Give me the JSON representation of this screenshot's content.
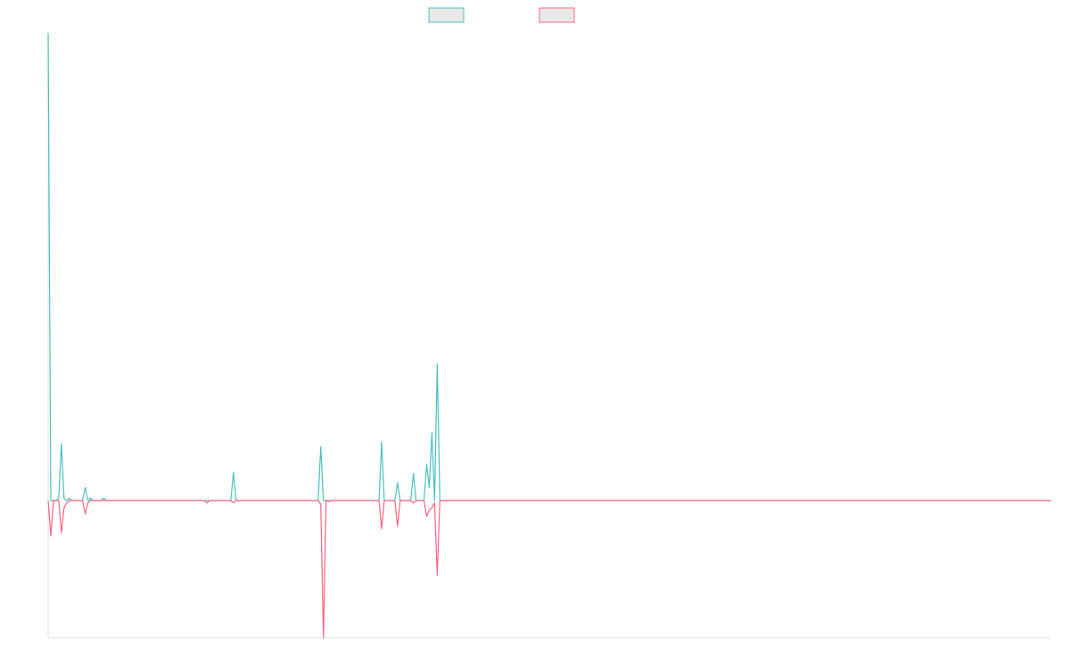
{
  "chart_data": {
    "type": "line",
    "title": "",
    "xlabel": "",
    "ylabel": "",
    "x_count": 380,
    "ylim": [
      -0.29,
      1.0
    ],
    "grid": false,
    "legend_position": "top-center",
    "series": [
      {
        "color": "#4bc0c0",
        "fill": "#e8e8e8",
        "name": "",
        "points": [
          [
            0,
            1.0
          ],
          [
            1,
            0.0
          ],
          [
            2,
            0.0
          ],
          [
            3,
            0.0
          ],
          [
            4,
            0.005
          ],
          [
            5,
            0.122
          ],
          [
            6,
            0.005
          ],
          [
            7,
            0.0
          ],
          [
            8,
            0.005
          ],
          [
            9,
            0.0
          ],
          [
            13,
            0.0
          ],
          [
            14,
            0.028
          ],
          [
            15,
            0.0
          ],
          [
            16,
            0.005
          ],
          [
            17,
            0.0
          ],
          [
            20,
            0.0
          ],
          [
            21,
            0.005
          ],
          [
            22,
            0.0
          ],
          [
            69,
            0.0
          ],
          [
            70,
            0.06
          ],
          [
            71,
            0.0
          ],
          [
            102,
            0.0
          ],
          [
            103,
            0.115
          ],
          [
            104,
            0.0
          ],
          [
            105,
            0.0
          ],
          [
            106,
            0.0
          ],
          [
            107,
            0.0
          ],
          [
            125,
            0.0
          ],
          [
            126,
            0.125
          ],
          [
            127,
            0.0
          ],
          [
            131,
            0.0
          ],
          [
            132,
            0.038
          ],
          [
            133,
            0.0
          ],
          [
            137,
            0.0
          ],
          [
            138,
            0.058
          ],
          [
            139,
            0.0
          ],
          [
            142,
            0.0
          ],
          [
            143,
            0.077
          ],
          [
            144,
            0.028
          ],
          [
            145,
            0.145
          ],
          [
            146,
            0.0
          ],
          [
            147,
            0.292
          ],
          [
            148,
            0.0
          ],
          [
            379,
            0.0
          ]
        ]
      },
      {
        "color": "#ff6384",
        "fill": "#e8e8e8",
        "name": "",
        "points": [
          [
            0,
            0.0
          ],
          [
            1,
            -0.075
          ],
          [
            2,
            0.0
          ],
          [
            3,
            0.0
          ],
          [
            4,
            0.0
          ],
          [
            5,
            -0.068
          ],
          [
            6,
            -0.015
          ],
          [
            7,
            -0.005
          ],
          [
            8,
            0.0
          ],
          [
            13,
            0.0
          ],
          [
            14,
            -0.028
          ],
          [
            15,
            -0.005
          ],
          [
            16,
            0.0
          ],
          [
            59,
            0.0
          ],
          [
            60,
            -0.005
          ],
          [
            61,
            0.0
          ],
          [
            69,
            0.0
          ],
          [
            70,
            -0.005
          ],
          [
            71,
            0.0
          ],
          [
            102,
            0.0
          ],
          [
            103,
            -0.008
          ],
          [
            104,
            -0.29
          ],
          [
            105,
            0.0
          ],
          [
            106,
            -0.002
          ],
          [
            107,
            0.0
          ],
          [
            125,
            0.0
          ],
          [
            126,
            -0.06
          ],
          [
            127,
            0.0
          ],
          [
            131,
            0.0
          ],
          [
            132,
            -0.055
          ],
          [
            133,
            0.0
          ],
          [
            137,
            0.0
          ],
          [
            138,
            -0.005
          ],
          [
            139,
            0.0
          ],
          [
            142,
            0.0
          ],
          [
            143,
            -0.033
          ],
          [
            144,
            -0.02
          ],
          [
            145,
            -0.015
          ],
          [
            146,
            -0.005
          ],
          [
            147,
            -0.158
          ],
          [
            148,
            0.0
          ],
          [
            379,
            0.0
          ]
        ]
      }
    ]
  }
}
